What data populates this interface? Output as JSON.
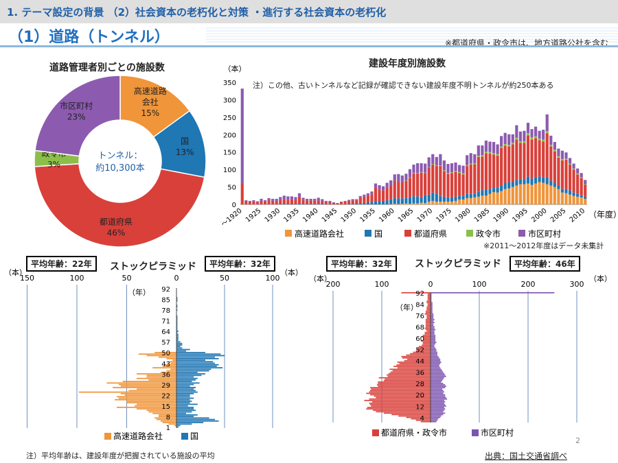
{
  "header": {
    "breadcrumb": "1. テーマ設定の背景 （2）社会資本の老朽化と対策 ・進行する社会資本の老朽化",
    "title": "（1）道路（トンネル）",
    "note": "※都道府県・政令市は、地方道路公社を含む"
  },
  "colors": {
    "expressway": "#f0953a",
    "national": "#1f77b4",
    "prefecture": "#d9403a",
    "designated": "#8cbf4a",
    "municipal": "#8c5bb0",
    "stock_muni": "#7d55b0"
  },
  "chart_data": [
    {
      "type": "pie",
      "title": "道路管理者別ごとの施設数",
      "center_label": [
        "トンネル：",
        "約10,300本"
      ],
      "slices": [
        {
          "label": [
            "高速道路",
            "会社"
          ],
          "value": 15,
          "pct": "15%",
          "color": "#f0953a"
        },
        {
          "label": [
            "国"
          ],
          "value": 13,
          "pct": "13%",
          "color": "#1f77b4"
        },
        {
          "label": [
            "都道府県"
          ],
          "value": 46,
          "pct": "46%",
          "color": "#d9403a"
        },
        {
          "label": [
            "政令市"
          ],
          "value": 3,
          "pct": "3%",
          "color": "#8cbf4a"
        },
        {
          "label": [
            "市区町村"
          ],
          "value": 23,
          "pct": "23%",
          "color": "#8c5bb0"
        }
      ]
    },
    {
      "type": "bar",
      "stacked": true,
      "title": "建設年度別施設数",
      "ylabel": "（本）",
      "xlabel": "（年度）",
      "ylim": [
        0,
        350
      ],
      "yticks": [
        0,
        50,
        100,
        150,
        200,
        250,
        300,
        350
      ],
      "xticks": [
        "～1920",
        "1925",
        "1930",
        "1935",
        "1940",
        "1945",
        "1950",
        "1955",
        "1960",
        "1965",
        "1970",
        "1975",
        "1980",
        "1985",
        "1990",
        "1995",
        "2000",
        "2005",
        "2010"
      ],
      "annotation": "注）この他、古いトンネルなど記録が確認できない建設年度不明トンネルが約250本ある",
      "footnote": "※2011～2012年度はデータ未集計",
      "years": [
        "～1920",
        1921,
        1922,
        1923,
        1924,
        1925,
        1926,
        1927,
        1928,
        1929,
        1930,
        1931,
        1932,
        1933,
        1934,
        1935,
        1936,
        1937,
        1938,
        1939,
        1940,
        1941,
        1942,
        1943,
        1944,
        1945,
        1946,
        1947,
        1948,
        1949,
        1950,
        1951,
        1952,
        1953,
        1954,
        1955,
        1956,
        1957,
        1958,
        1959,
        1960,
        1961,
        1962,
        1963,
        1964,
        1965,
        1966,
        1967,
        1968,
        1969,
        1970,
        1971,
        1972,
        1973,
        1974,
        1975,
        1976,
        1977,
        1978,
        1979,
        1980,
        1981,
        1982,
        1983,
        1984,
        1985,
        1986,
        1987,
        1988,
        1989,
        1990,
        1991,
        1992,
        1993,
        1994,
        1995,
        1996,
        1997,
        1998,
        1999,
        2000,
        2001,
        2002,
        2003,
        2004,
        2005,
        2006,
        2007,
        2008,
        2009,
        2010
      ],
      "series": [
        {
          "name": "高速道路会社",
          "color": "#f0953a",
          "values": [
            0,
            0,
            0,
            0,
            0,
            0,
            0,
            0,
            0,
            0,
            0,
            0,
            0,
            0,
            0,
            0,
            0,
            0,
            0,
            0,
            0,
            0,
            0,
            0,
            0,
            0,
            0,
            0,
            0,
            0,
            0,
            0,
            0,
            0,
            0,
            0,
            0,
            0,
            0,
            1,
            2,
            1,
            2,
            3,
            2,
            3,
            3,
            5,
            4,
            8,
            10,
            8,
            8,
            8,
            8,
            8,
            10,
            14,
            14,
            18,
            18,
            20,
            22,
            25,
            25,
            30,
            35,
            34,
            38,
            44,
            46,
            50,
            54,
            58,
            58,
            60,
            56,
            60,
            64,
            62,
            58,
            54,
            50,
            44,
            34,
            32,
            28,
            24,
            22,
            20,
            16
          ]
        },
        {
          "name": "国",
          "color": "#1f77b4",
          "values": [
            0,
            0,
            0,
            0,
            0,
            0,
            0,
            0,
            0,
            0,
            1,
            1,
            1,
            1,
            1,
            2,
            1,
            1,
            1,
            1,
            1,
            1,
            0,
            0,
            0,
            0,
            0,
            0,
            1,
            1,
            2,
            3,
            4,
            6,
            7,
            8,
            9,
            10,
            12,
            14,
            16,
            16,
            15,
            16,
            18,
            20,
            20,
            16,
            22,
            20,
            24,
            22,
            16,
            14,
            12,
            12,
            12,
            10,
            10,
            12,
            12,
            11,
            14,
            16,
            18,
            14,
            12,
            14,
            16,
            18,
            18,
            14,
            16,
            14,
            14,
            20,
            18,
            18,
            16,
            16,
            20,
            14,
            12,
            10,
            10,
            12,
            12,
            10,
            8,
            6,
            6
          ]
        },
        {
          "name": "都道府県",
          "color": "#d9403a",
          "values": [
            60,
            10,
            6,
            8,
            6,
            10,
            8,
            12,
            10,
            9,
            12,
            14,
            12,
            14,
            12,
            20,
            12,
            10,
            10,
            10,
            10,
            8,
            6,
            6,
            4,
            3,
            6,
            8,
            10,
            10,
            10,
            16,
            18,
            20,
            22,
            40,
            34,
            30,
            36,
            40,
            50,
            48,
            46,
            48,
            56,
            66,
            66,
            70,
            64,
            78,
            80,
            80,
            86,
            74,
            68,
            70,
            72,
            66,
            62,
            80,
            84,
            84,
            100,
            96,
            104,
            102,
            96,
            92,
            108,
            106,
            102,
            108,
            116,
            104,
            104,
            118,
            112,
            112,
            104,
            102,
            126,
            98,
            90,
            80,
            82,
            84,
            74,
            66,
            56,
            50,
            34
          ]
        },
        {
          "name": "政令市",
          "color": "#8cbf4a",
          "values": [
            0,
            0,
            0,
            0,
            0,
            0,
            0,
            0,
            0,
            0,
            0,
            0,
            0,
            0,
            0,
            0,
            0,
            0,
            0,
            0,
            0,
            0,
            0,
            0,
            0,
            0,
            0,
            0,
            0,
            0,
            0,
            0,
            0,
            0,
            0,
            0,
            0,
            0,
            0,
            0,
            0,
            0,
            0,
            1,
            1,
            1,
            1,
            1,
            1,
            1,
            2,
            2,
            2,
            2,
            2,
            2,
            2,
            3,
            3,
            3,
            3,
            3,
            3,
            4,
            4,
            4,
            4,
            4,
            4,
            5,
            5,
            5,
            5,
            5,
            5,
            6,
            6,
            5,
            5,
            6,
            6,
            5,
            5,
            4,
            4,
            3,
            3,
            3,
            3,
            2,
            2
          ]
        },
        {
          "name": "市区町村",
          "color": "#8c5bb0",
          "values": [
            272,
            2,
            4,
            4,
            3,
            6,
            4,
            6,
            6,
            7,
            8,
            10,
            10,
            8,
            8,
            10,
            6,
            5,
            5,
            5,
            8,
            6,
            4,
            4,
            2,
            1,
            2,
            2,
            2,
            4,
            3,
            5,
            6,
            6,
            8,
            12,
            12,
            12,
            14,
            14,
            18,
            22,
            20,
            20,
            24,
            24,
            28,
            26,
            26,
            28,
            28,
            24,
            32,
            28,
            26,
            26,
            24,
            20,
            22,
            28,
            30,
            26,
            30,
            28,
            32,
            30,
            32,
            28,
            30,
            32,
            30,
            24,
            36,
            28,
            30,
            30,
            24,
            28,
            22,
            28,
            48,
            26,
            22,
            22,
            24,
            18,
            16,
            14,
            14,
            12,
            12
          ]
        }
      ],
      "legend": [
        "高速道路会社",
        "国",
        "都道府県",
        "政令市",
        "市区町村"
      ]
    },
    {
      "type": "bar",
      "subtype": "population-pyramid",
      "title": "ストックピラミッド",
      "left_label": "平均年齢：22年",
      "right_label": "平均年齢：32年",
      "unit": "（本）",
      "ylabel": "（年）",
      "xticks_left": [
        150,
        100,
        50,
        0
      ],
      "xticks_right": [
        50,
        100
      ],
      "age_ticks": [
        1,
        8,
        15,
        22,
        29,
        36,
        43,
        50,
        57,
        64,
        71,
        78,
        85,
        92
      ],
      "ages_from": 1,
      "series": [
        {
          "name": "高速道路会社",
          "side": "left",
          "color": "#f0953a",
          "values": [
            0,
            2,
            8,
            14,
            16,
            20,
            22,
            18,
            18,
            24,
            28,
            30,
            40,
            60,
            42,
            40,
            50,
            50,
            62,
            58,
            60,
            52,
            56,
            98,
            48,
            40,
            64,
            56,
            58,
            70,
            54,
            28,
            40,
            30,
            30,
            40,
            16,
            10,
            6,
            24,
            14,
            12,
            6,
            8,
            4,
            10,
            18,
            30,
            38,
            22,
            0,
            0,
            0,
            0,
            0,
            0,
            0,
            0,
            0,
            0,
            0,
            0,
            0,
            0,
            0,
            0,
            0,
            0,
            0,
            0,
            0,
            0,
            0,
            0,
            0,
            0,
            0,
            0,
            0,
            0,
            0,
            0,
            0,
            0,
            0,
            0,
            0,
            0,
            0,
            0,
            0,
            0
          ]
        },
        {
          "name": "国",
          "side": "right",
          "color": "#1f77b4",
          "values": [
            2,
            4,
            16,
            28,
            44,
            40,
            34,
            18,
            22,
            10,
            16,
            20,
            18,
            18,
            12,
            22,
            14,
            16,
            14,
            18,
            14,
            14,
            18,
            22,
            20,
            18,
            20,
            14,
            18,
            24,
            16,
            20,
            22,
            18,
            26,
            30,
            22,
            34,
            36,
            48,
            42,
            44,
            40,
            38,
            30,
            44,
            40,
            50,
            46,
            30,
            10,
            14,
            6,
            4,
            6,
            6,
            4,
            2,
            2,
            2,
            2,
            2,
            1,
            2,
            1,
            1,
            1,
            1,
            1,
            1,
            1,
            1,
            1,
            1,
            0,
            0,
            0,
            1,
            0,
            1,
            1,
            0,
            0,
            1,
            1,
            1,
            0,
            0,
            0,
            0,
            0,
            0
          ]
        }
      ],
      "legend": [
        "高速道路会社",
        "国"
      ]
    },
    {
      "type": "bar",
      "subtype": "population-pyramid",
      "title": "ストックピラミッド",
      "left_label": "平均年齢：32年",
      "right_label": "平均年齢：46年",
      "unit": "（本）",
      "ylabel": "（年）",
      "xticks_left": [
        200,
        100,
        0
      ],
      "xticks_right": [
        100,
        200,
        300
      ],
      "age_ticks": [
        4,
        12,
        20,
        28,
        36,
        44,
        52,
        60,
        68,
        76,
        84,
        92
      ],
      "ages_from": 1,
      "series": [
        {
          "name": "都道府県・政令市",
          "side": "left",
          "color": "#d9403a",
          "values": [
            20,
            30,
            40,
            50,
            66,
            80,
            96,
            112,
            118,
            132,
            130,
            122,
            124,
            126,
            120,
            136,
            126,
            112,
            116,
            124,
            132,
            126,
            124,
            122,
            124,
            108,
            110,
            108,
            108,
            96,
            94,
            106,
            88,
            90,
            86,
            82,
            78,
            84,
            68,
            76,
            70,
            64,
            68,
            54,
            48,
            58,
            60,
            50,
            42,
            36,
            30,
            28,
            26,
            24,
            18,
            16,
            16,
            20,
            14,
            14,
            18,
            16,
            12,
            12,
            8,
            10,
            12,
            10,
            10,
            10,
            10,
            10,
            10,
            8,
            8,
            8,
            12,
            10,
            10,
            8,
            8,
            8,
            6,
            6,
            8,
            8,
            6,
            6,
            6,
            6,
            6,
            60
          ]
        },
        {
          "name": "市区町村",
          "side": "right",
          "color": "#7d55b0",
          "values": [
            12,
            14,
            16,
            20,
            22,
            26,
            30,
            26,
            28,
            30,
            28,
            32,
            30,
            28,
            30,
            28,
            34,
            32,
            30,
            30,
            26,
            28,
            26,
            24,
            30,
            32,
            30,
            26,
            22,
            24,
            26,
            28,
            32,
            30,
            28,
            26,
            24,
            22,
            20,
            18,
            18,
            20,
            22,
            20,
            20,
            18,
            16,
            14,
            14,
            14,
            12,
            12,
            10,
            8,
            8,
            10,
            12,
            10,
            10,
            10,
            10,
            10,
            8,
            8,
            8,
            10,
            8,
            8,
            6,
            6,
            8,
            6,
            8,
            6,
            6,
            6,
            6,
            4,
            4,
            4,
            4,
            4,
            4,
            4,
            4,
            2,
            2,
            2,
            2,
            2,
            2,
            254
          ]
        }
      ],
      "legend": [
        "都道府県・政令市",
        "市区町村"
      ]
    }
  ],
  "footer": {
    "note": "注）平均年齢は、建設年度が把握されている施設の平均",
    "source": "出典：国土交通省調べ",
    "page": "2"
  }
}
